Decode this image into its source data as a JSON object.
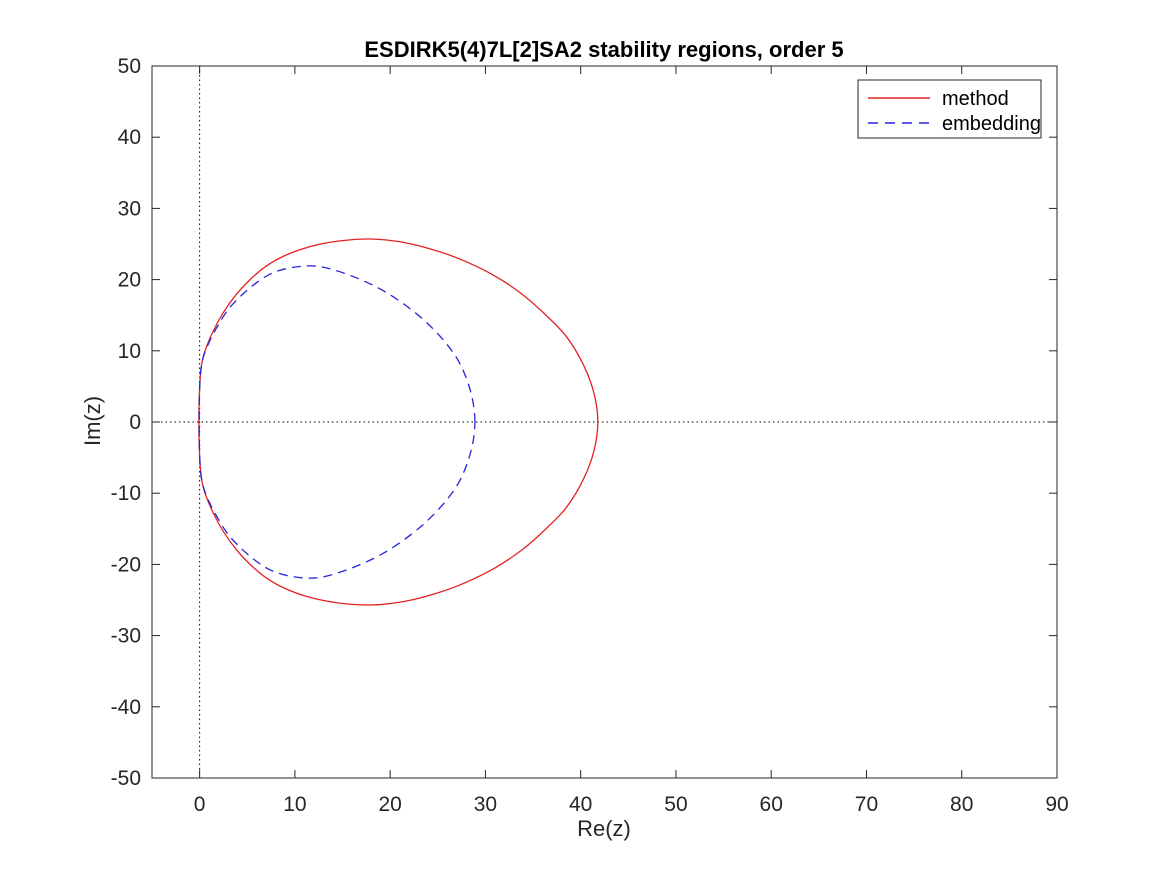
{
  "figure": {
    "background_color": "#ffffff",
    "axis_color": "#262626"
  },
  "chart_data": {
    "type": "line",
    "title": "ESDIRK5(4)7L[2]SA2 stability regions, order 5",
    "xlabel": "Re(z)",
    "ylabel": "Im(z)",
    "xlim": [
      -5,
      90
    ],
    "ylim": [
      -50,
      50
    ],
    "x_ticks": [
      0,
      10,
      20,
      30,
      40,
      50,
      60,
      70,
      80,
      90
    ],
    "y_ticks": [
      -50,
      -40,
      -30,
      -20,
      -10,
      0,
      10,
      20,
      30,
      40,
      50
    ],
    "grid": false,
    "zero_reference_lines": {
      "x": 0,
      "y": 0,
      "style": "dotted",
      "color": "#000000"
    },
    "legend": {
      "position": "top-right",
      "border_color": "#262626",
      "background": "#ffffff",
      "entries": [
        {
          "label": "method",
          "color": "#e32222",
          "line_style": "solid"
        },
        {
          "label": "embedding",
          "color": "#2424dd",
          "line_style": "dashed"
        }
      ]
    },
    "series": [
      {
        "name": "method",
        "color": "#e32222",
        "line_style": "solid",
        "closed": true,
        "points": [
          [
            41.8,
            0
          ],
          [
            41.4,
            4
          ],
          [
            40.3,
            8
          ],
          [
            38.5,
            12
          ],
          [
            36.2,
            15.2
          ],
          [
            33.8,
            18
          ],
          [
            31,
            20.5
          ],
          [
            28,
            22.5
          ],
          [
            25,
            24
          ],
          [
            21.5,
            25.2
          ],
          [
            18,
            25.7
          ],
          [
            14.5,
            25.4
          ],
          [
            11.5,
            24.6
          ],
          [
            9,
            23.4
          ],
          [
            7,
            21.9
          ],
          [
            5.3,
            20
          ],
          [
            3.9,
            18
          ],
          [
            2.6,
            15.6
          ],
          [
            1.7,
            13.5
          ],
          [
            1,
            11.5
          ],
          [
            0.45,
            9.5
          ],
          [
            0.2,
            8
          ],
          [
            0.05,
            6
          ],
          [
            -0.05,
            3
          ],
          [
            -0.08,
            0
          ],
          [
            -0.05,
            -3
          ],
          [
            0.05,
            -6
          ],
          [
            0.2,
            -8
          ],
          [
            0.45,
            -9.5
          ],
          [
            1,
            -11.5
          ],
          [
            1.7,
            -13.5
          ],
          [
            2.6,
            -15.6
          ],
          [
            3.9,
            -18
          ],
          [
            5.3,
            -20
          ],
          [
            7,
            -21.9
          ],
          [
            9,
            -23.4
          ],
          [
            11.5,
            -24.6
          ],
          [
            14.5,
            -25.4
          ],
          [
            18,
            -25.7
          ],
          [
            21.5,
            -25.2
          ],
          [
            25,
            -24
          ],
          [
            28,
            -22.5
          ],
          [
            31,
            -20.5
          ],
          [
            33.8,
            -18
          ],
          [
            36.2,
            -15.2
          ],
          [
            38.5,
            -12
          ],
          [
            40.3,
            -8
          ],
          [
            41.4,
            -4
          ]
        ]
      },
      {
        "name": "embedding",
        "color": "#2424dd",
        "line_style": "dashed",
        "closed": true,
        "points": [
          [
            28.9,
            0
          ],
          [
            28.5,
            4
          ],
          [
            27.4,
            8
          ],
          [
            25.9,
            11
          ],
          [
            23.8,
            14
          ],
          [
            21.5,
            16.5
          ],
          [
            19.2,
            18.5
          ],
          [
            16.9,
            20
          ],
          [
            14.5,
            21.2
          ],
          [
            12.2,
            21.9
          ],
          [
            9.7,
            21.7
          ],
          [
            7.6,
            20.9
          ],
          [
            5.9,
            19.5
          ],
          [
            4.4,
            17.8
          ],
          [
            3,
            15.8
          ],
          [
            1.9,
            13.5
          ],
          [
            1.1,
            11.5
          ],
          [
            0.5,
            9.6
          ],
          [
            0.2,
            8
          ],
          [
            0.05,
            6
          ],
          [
            -0.03,
            3
          ],
          [
            -0.05,
            0
          ],
          [
            -0.03,
            -3
          ],
          [
            0.05,
            -6
          ],
          [
            0.2,
            -8
          ],
          [
            0.5,
            -9.6
          ],
          [
            1.1,
            -11.5
          ],
          [
            1.9,
            -13.5
          ],
          [
            3,
            -15.8
          ],
          [
            4.4,
            -17.8
          ],
          [
            5.9,
            -19.5
          ],
          [
            7.6,
            -20.9
          ],
          [
            9.7,
            -21.7
          ],
          [
            12.2,
            -21.9
          ],
          [
            14.5,
            -21.2
          ],
          [
            16.9,
            -20
          ],
          [
            19.2,
            -18.5
          ],
          [
            21.5,
            -16.5
          ],
          [
            23.8,
            -14
          ],
          [
            25.9,
            -11
          ],
          [
            27.4,
            -8
          ],
          [
            28.5,
            -4
          ]
        ]
      }
    ]
  }
}
